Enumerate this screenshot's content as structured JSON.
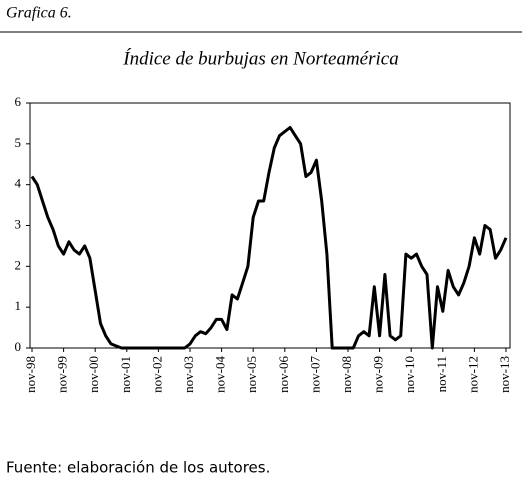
{
  "header": "Grafica 6.",
  "footer": "Fuente: elaboración de los autores.",
  "chart_data": {
    "type": "line",
    "title": "Índice de burbujas en Norteamérica",
    "categories": [
      "nov-98",
      null,
      null,
      null,
      null,
      null,
      "nov-99",
      null,
      null,
      null,
      null,
      null,
      "nov-00",
      null,
      null,
      null,
      null,
      null,
      "nov-01",
      null,
      null,
      null,
      null,
      null,
      "nov-02",
      null,
      null,
      null,
      null,
      null,
      "nov-03",
      null,
      null,
      null,
      null,
      null,
      "nov-04",
      null,
      null,
      null,
      null,
      null,
      "nov-05",
      null,
      null,
      null,
      null,
      null,
      "nov-06",
      null,
      null,
      null,
      null,
      null,
      "nov-07",
      null,
      null,
      null,
      null,
      null,
      "nov-08",
      null,
      null,
      null,
      null,
      null,
      "nov-09",
      null,
      null,
      null,
      null,
      null,
      "nov-10",
      null,
      null,
      null,
      null,
      null,
      "nov-11",
      null,
      null,
      null,
      null,
      null,
      "nov-12",
      null,
      null,
      null,
      null,
      null,
      "nov-13"
    ],
    "series": [
      {
        "name": "Índice",
        "color": "#000000",
        "values": [
          4.2,
          4.0,
          3.6,
          3.2,
          2.9,
          2.5,
          2.3,
          2.6,
          2.4,
          2.3,
          2.5,
          2.2,
          1.4,
          0.6,
          0.3,
          0.1,
          0.05,
          0,
          0,
          0,
          0,
          0,
          0,
          0,
          0,
          0,
          0,
          0,
          0,
          0,
          0.1,
          0.3,
          0.4,
          0.35,
          0.5,
          0.7,
          0.7,
          0.45,
          1.3,
          1.2,
          1.6,
          2.0,
          3.2,
          3.6,
          3.6,
          4.3,
          4.9,
          5.2,
          5.3,
          5.4,
          5.2,
          5.0,
          4.2,
          4.3,
          4.6,
          3.6,
          2.3,
          0,
          0,
          0,
          0,
          0,
          0.3,
          0.4,
          0.3,
          1.5,
          0.3,
          1.8,
          0.3,
          0.2,
          0.3,
          2.3,
          2.2,
          2.3,
          2.0,
          1.8,
          0,
          1.5,
          0.9,
          1.9,
          1.5,
          1.3,
          1.6,
          2.0,
          2.7,
          2.3,
          3.0,
          2.9,
          2.2,
          2.4,
          2.7
        ]
      }
    ],
    "ylim": [
      0,
      6
    ],
    "yticks": [
      0,
      1,
      2,
      3,
      4,
      5,
      6
    ]
  }
}
